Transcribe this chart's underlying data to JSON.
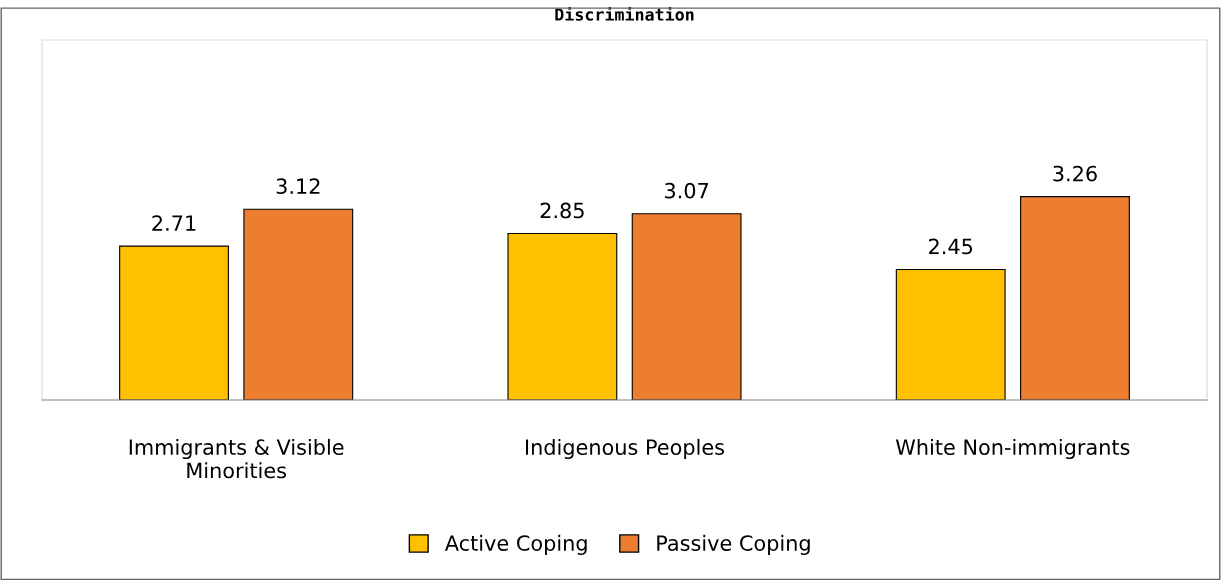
{
  "chart_data": {
    "type": "bar",
    "title": "Discrimination",
    "categories": [
      "Immigrants & Visible\nMinorities",
      "Indigenous Peoples",
      "White Non-immigrants"
    ],
    "series": [
      {
        "name": "Active Coping",
        "color": "#ffc000",
        "values": [
          2.71,
          2.85,
          2.45
        ]
      },
      {
        "name": "Passive Coping",
        "color": "#ed7d31",
        "values": [
          3.12,
          3.07,
          3.26
        ]
      }
    ],
    "ylim": [
      1,
      5
    ],
    "tick_labels": "x",
    "data_labels": true,
    "grid": false,
    "legend": "bottom"
  }
}
